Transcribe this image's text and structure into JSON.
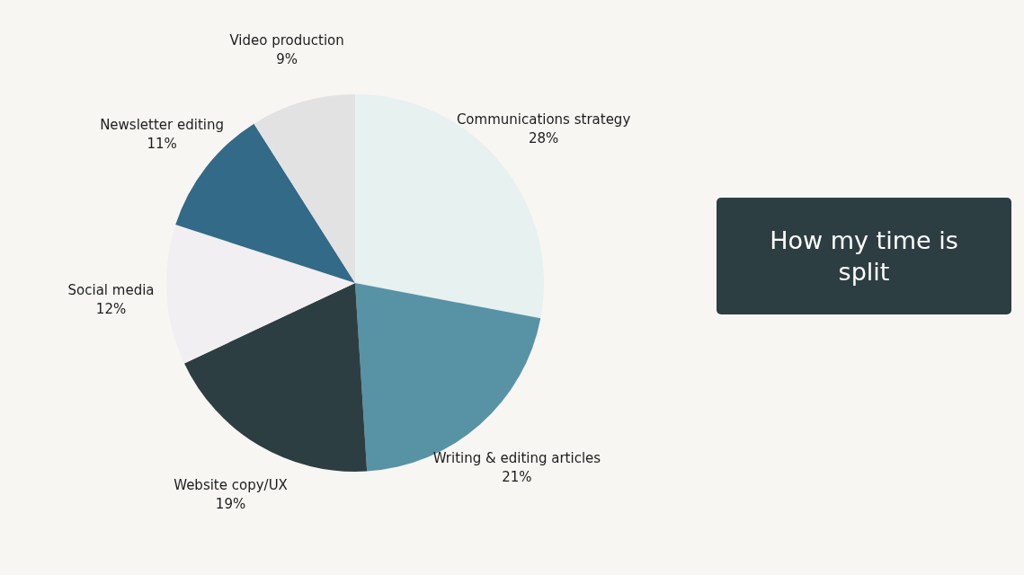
{
  "chart_data": {
    "type": "pie",
    "title": "How my time is split",
    "categories": [
      "Communications strategy",
      "Writing & editing articles",
      "Website copy/UX",
      "Social media",
      "Newsletter editing",
      "Video production"
    ],
    "values": [
      28,
      21,
      19,
      12,
      11,
      9
    ],
    "colors": [
      "#e6f1f0",
      "#5893a5",
      "#2d3e42",
      "#f1eff1",
      "#336a87",
      "#e2e2e2"
    ],
    "value_labels": [
      "28%",
      "21%",
      "19%",
      "12%",
      "11%",
      "9%"
    ],
    "legend": false
  }
}
